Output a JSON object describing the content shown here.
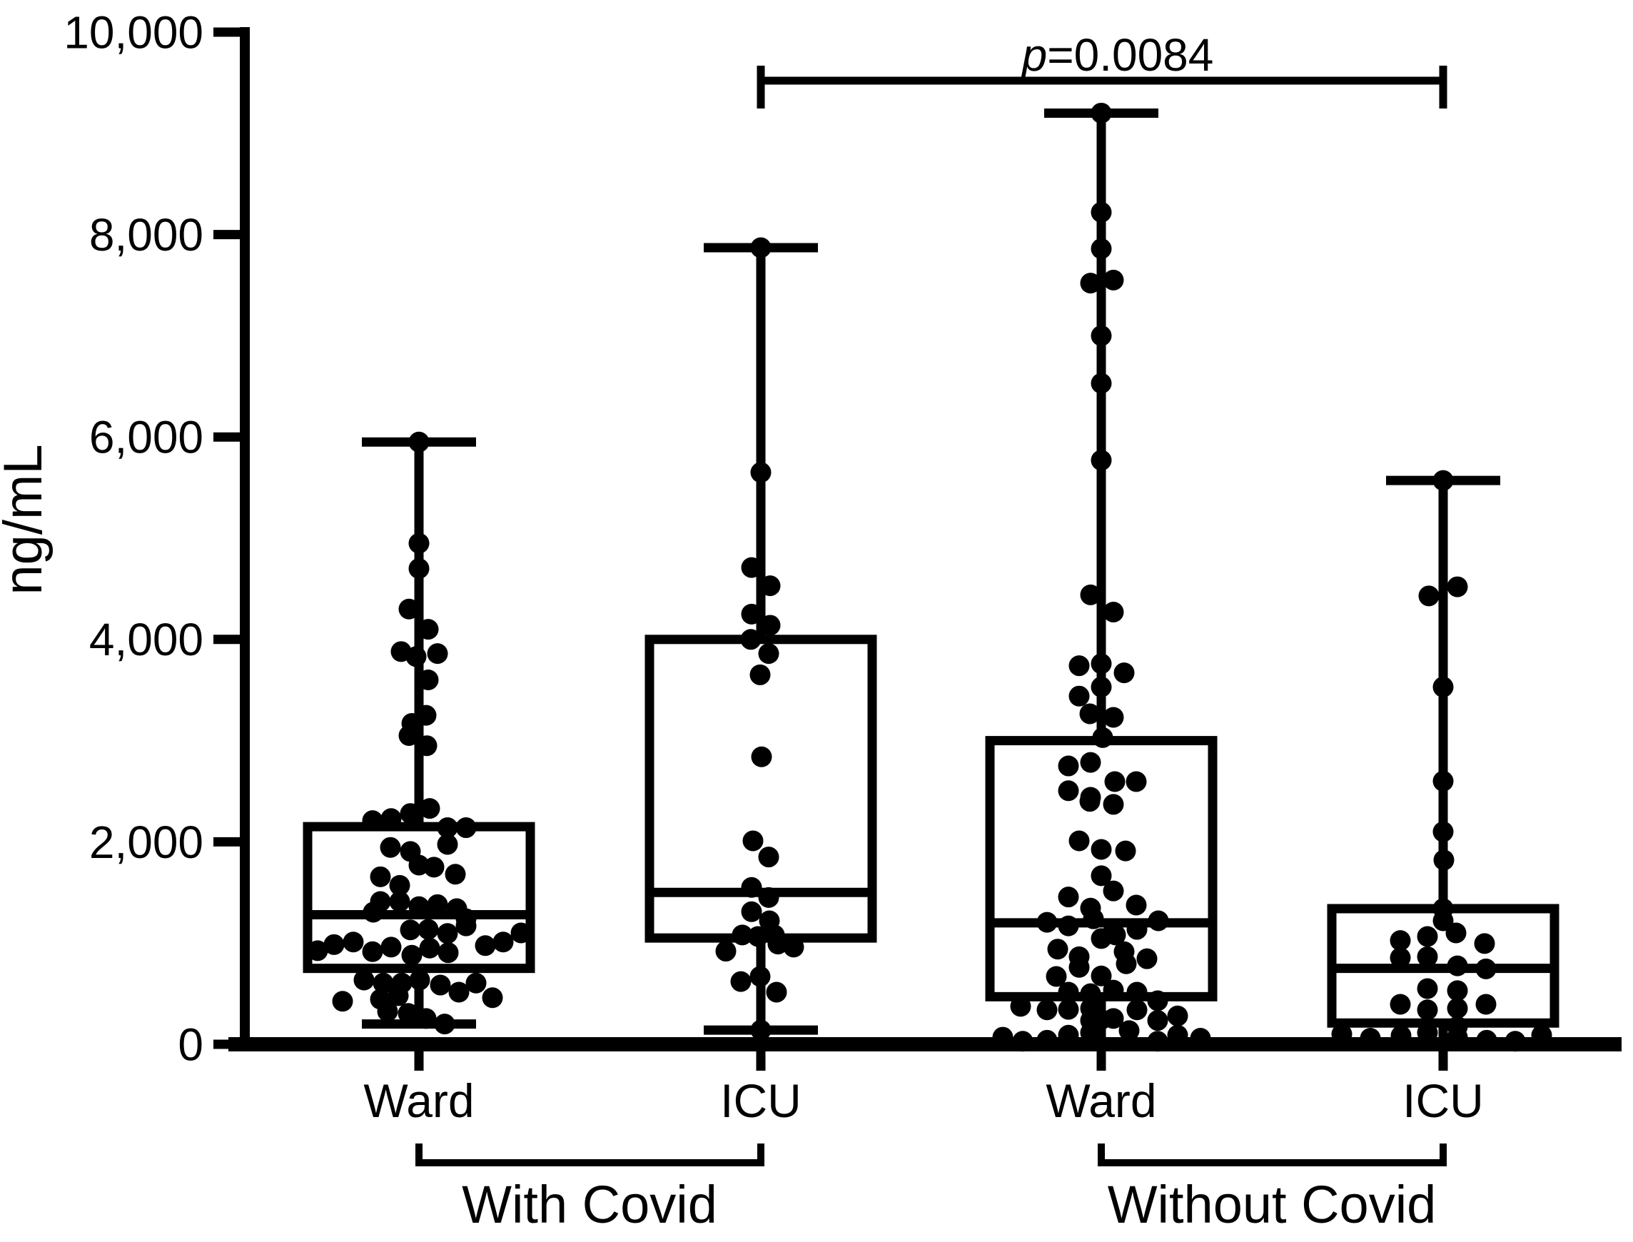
{
  "figure": {
    "background": "#ffffff",
    "ink": "#000000",
    "y_axis_label": "ng/mL",
    "p_annotation": "p=0.0084"
  },
  "x_axis": {
    "categories": [
      "Ward",
      "ICU",
      "Ward",
      "ICU"
    ],
    "cohorts": [
      "With Covid",
      "Without Covid"
    ]
  },
  "chart_data": {
    "type": "box-scatter",
    "title": "",
    "xlabel": "",
    "ylabel": "ng/mL",
    "ylim": [
      0,
      10000
    ],
    "y_ticks": [
      0,
      2000,
      4000,
      6000,
      8000,
      10000
    ],
    "y_tick_labels": [
      "0",
      "2,000",
      "4,000",
      "6,000",
      "8,000",
      "10,000"
    ],
    "grid": false,
    "legend": "none",
    "significance": {
      "label": "p=0.0084",
      "from_group_index": 1,
      "to_group_index": 3
    },
    "groups": [
      {
        "category": "Ward",
        "cohort": "With Covid",
        "box": {
          "whisker_low": 200,
          "q1": 750,
          "median": 1280,
          "q3": 2150,
          "whisker_high": 5950,
          "cap_low": true
        },
        "points": [
          [
            0,
            5950
          ],
          [
            0,
            4950
          ],
          [
            0,
            4700
          ],
          [
            -14,
            4300
          ],
          [
            13,
            4100
          ],
          [
            -25,
            3880
          ],
          [
            26,
            3860
          ],
          [
            -4,
            3830
          ],
          [
            13,
            3600
          ],
          [
            10,
            3250
          ],
          [
            -10,
            3170
          ],
          [
            -14,
            3050
          ],
          [
            11,
            2950
          ],
          [
            15,
            2330
          ],
          [
            -65,
            2210
          ],
          [
            -39,
            2230
          ],
          [
            -12,
            2280
          ],
          [
            40,
            2140
          ],
          [
            66,
            2140
          ],
          [
            40,
            1975
          ],
          [
            -40,
            1945
          ],
          [
            -12,
            1905
          ],
          [
            0,
            1770
          ],
          [
            21,
            1750
          ],
          [
            51,
            1680
          ],
          [
            -54,
            1655
          ],
          [
            -27,
            1570
          ],
          [
            -54,
            1410
          ],
          [
            -27,
            1410
          ],
          [
            0,
            1360
          ],
          [
            26,
            1380
          ],
          [
            53,
            1340
          ],
          [
            -64,
            1305
          ],
          [
            66,
            1240
          ],
          [
            -12,
            1130
          ],
          [
            13,
            1135
          ],
          [
            40,
            1095
          ],
          [
            66,
            1170
          ],
          [
            -142,
            925
          ],
          [
            -119,
            985
          ],
          [
            -92,
            1010
          ],
          [
            -65,
            915
          ],
          [
            -39,
            960
          ],
          [
            -10,
            880
          ],
          [
            15,
            950
          ],
          [
            41,
            905
          ],
          [
            93,
            975
          ],
          [
            118,
            1010
          ],
          [
            143,
            1100
          ],
          [
            -77,
            635
          ],
          [
            -50,
            605
          ],
          [
            -24,
            605
          ],
          [
            1,
            635
          ],
          [
            30,
            585
          ],
          [
            56,
            515
          ],
          [
            80,
            605
          ],
          [
            103,
            460
          ],
          [
            -107,
            425
          ],
          [
            -54,
            445
          ],
          [
            -29,
            480
          ],
          [
            -44,
            325
          ],
          [
            -15,
            305
          ],
          [
            10,
            255
          ],
          [
            36,
            200
          ]
        ]
      },
      {
        "category": "ICU",
        "cohort": "With Covid",
        "box": {
          "whisker_low": 140,
          "q1": 1050,
          "median": 1500,
          "q3": 4000,
          "whisker_high": 7870,
          "cap_low": true
        },
        "points": [
          [
            0,
            7870
          ],
          [
            0,
            5650
          ],
          [
            -13,
            4710
          ],
          [
            13,
            4530
          ],
          [
            -13,
            4250
          ],
          [
            13,
            4140
          ],
          [
            -14,
            4000
          ],
          [
            11,
            3860
          ],
          [
            -1,
            3650
          ],
          [
            1,
            2840
          ],
          [
            -11,
            2010
          ],
          [
            11,
            1850
          ],
          [
            -13,
            1550
          ],
          [
            11,
            1450
          ],
          [
            -13,
            1310
          ],
          [
            12,
            1220
          ],
          [
            -26,
            1080
          ],
          [
            -4,
            1065
          ],
          [
            19,
            1080
          ],
          [
            24,
            990
          ],
          [
            46,
            960
          ],
          [
            -49,
            920
          ],
          [
            -1,
            670
          ],
          [
            -28,
            620
          ],
          [
            22,
            515
          ],
          [
            0,
            140
          ]
        ]
      },
      {
        "category": "Ward",
        "cohort": "Without Covid",
        "box": {
          "whisker_low": 0,
          "q1": 470,
          "median": 1200,
          "q3": 3000,
          "whisker_high": 9200,
          "cap_low": false
        },
        "points": [
          [
            0,
            9200
          ],
          [
            0,
            8220
          ],
          [
            0,
            7860
          ],
          [
            -15,
            7520
          ],
          [
            17,
            7550
          ],
          [
            0,
            7000
          ],
          [
            0,
            6530
          ],
          [
            0,
            5770
          ],
          [
            -15,
            4440
          ],
          [
            17,
            4270
          ],
          [
            -31,
            3740
          ],
          [
            0,
            3760
          ],
          [
            32,
            3670
          ],
          [
            0,
            3530
          ],
          [
            -31,
            3440
          ],
          [
            -16,
            3265
          ],
          [
            17,
            3230
          ],
          [
            2,
            3030
          ],
          [
            -46,
            2750
          ],
          [
            -15,
            2785
          ],
          [
            19,
            2595
          ],
          [
            49,
            2595
          ],
          [
            -46,
            2505
          ],
          [
            -15,
            2440
          ],
          [
            -16,
            2400
          ],
          [
            17,
            2370
          ],
          [
            -31,
            2010
          ],
          [
            0,
            1925
          ],
          [
            34,
            1910
          ],
          [
            0,
            1665
          ],
          [
            17,
            1515
          ],
          [
            -46,
            1455
          ],
          [
            -15,
            1345
          ],
          [
            49,
            1375
          ],
          [
            -76,
            1205
          ],
          [
            -46,
            1170
          ],
          [
            -11,
            1240
          ],
          [
            17,
            1115
          ],
          [
            50,
            1135
          ],
          [
            80,
            1220
          ],
          [
            0,
            1045
          ],
          [
            20,
            1080
          ],
          [
            -61,
            940
          ],
          [
            -31,
            865
          ],
          [
            -31,
            760
          ],
          [
            32,
            915
          ],
          [
            35,
            795
          ],
          [
            64,
            845
          ],
          [
            -63,
            670
          ],
          [
            0,
            675
          ],
          [
            -46,
            515
          ],
          [
            -15,
            500
          ],
          [
            17,
            535
          ],
          [
            50,
            515
          ],
          [
            79,
            430
          ],
          [
            -113,
            375
          ],
          [
            -76,
            340
          ],
          [
            -46,
            345
          ],
          [
            -15,
            355
          ],
          [
            -15,
            235
          ],
          [
            0,
            245
          ],
          [
            17,
            255
          ],
          [
            50,
            340
          ],
          [
            79,
            235
          ],
          [
            107,
            280
          ],
          [
            -138,
            70
          ],
          [
            -110,
            30
          ],
          [
            -76,
            40
          ],
          [
            -46,
            90
          ],
          [
            -15,
            115
          ],
          [
            39,
            135
          ],
          [
            79,
            30
          ],
          [
            107,
            90
          ],
          [
            139,
            60
          ]
        ]
      },
      {
        "category": "ICU",
        "cohort": "Without Covid",
        "box": {
          "whisker_low": 0,
          "q1": 210,
          "median": 750,
          "q3": 1340,
          "whisker_high": 5570,
          "cap_low": false
        },
        "points": [
          [
            0,
            5570
          ],
          [
            20,
            4520
          ],
          [
            -20,
            4430
          ],
          [
            0,
            3530
          ],
          [
            0,
            2600
          ],
          [
            0,
            2100
          ],
          [
            1,
            1820
          ],
          [
            0,
            1340
          ],
          [
            0,
            1220
          ],
          [
            18,
            1100
          ],
          [
            -60,
            1025
          ],
          [
            -22,
            1065
          ],
          [
            58,
            995
          ],
          [
            -60,
            855
          ],
          [
            -22,
            865
          ],
          [
            20,
            775
          ],
          [
            60,
            745
          ],
          [
            -22,
            550
          ],
          [
            20,
            530
          ],
          [
            -60,
            395
          ],
          [
            -22,
            340
          ],
          [
            20,
            355
          ],
          [
            60,
            395
          ],
          [
            20,
            175
          ],
          [
            -142,
            100
          ],
          [
            -102,
            60
          ],
          [
            -59,
            85
          ],
          [
            -22,
            115
          ],
          [
            20,
            70
          ],
          [
            61,
            40
          ],
          [
            101,
            30
          ],
          [
            138,
            90
          ]
        ]
      }
    ]
  }
}
